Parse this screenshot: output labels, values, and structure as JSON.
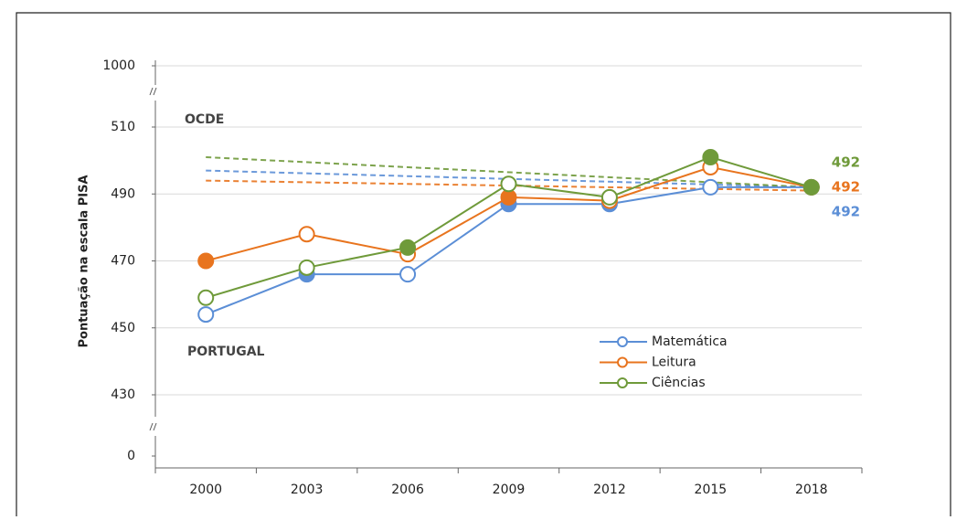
{
  "chart_data": {
    "type": "line",
    "y_label": "Pontuação na escala PISA",
    "annotations": [
      "OCDE",
      "PORTUGAL"
    ],
    "categories": [
      "2000",
      "2003",
      "2006",
      "2009",
      "2012",
      "2015",
      "2018"
    ],
    "ylim": [
      0,
      1000
    ],
    "ybreaks": [
      [
        0,
        430
      ],
      [
        510,
        1000
      ]
    ],
    "yticks": [
      0,
      430,
      450,
      470,
      490,
      510,
      1000
    ],
    "grid": true,
    "legend": "bottom-right",
    "series": [
      {
        "name": "Matemática",
        "color": "#5b8ed6",
        "values": [
          454,
          466,
          466,
          487,
          487,
          492,
          492
        ],
        "filled": [
          false,
          true,
          false,
          true,
          true,
          false,
          true
        ],
        "oecd_trend": [
          497,
          492
        ]
      },
      {
        "name": "Leitura",
        "color": "#e8741e",
        "values": [
          470,
          478,
          472,
          489,
          488,
          498,
          492
        ],
        "filled": [
          true,
          false,
          false,
          true,
          false,
          false,
          true
        ],
        "oecd_trend": [
          494,
          491
        ]
      },
      {
        "name": "Ciências",
        "color": "#6f9a3a",
        "values": [
          459,
          468,
          474,
          493,
          489,
          501,
          492
        ],
        "filled": [
          false,
          false,
          true,
          false,
          false,
          true,
          true
        ],
        "oecd_trend": [
          501,
          492
        ]
      }
    ]
  }
}
